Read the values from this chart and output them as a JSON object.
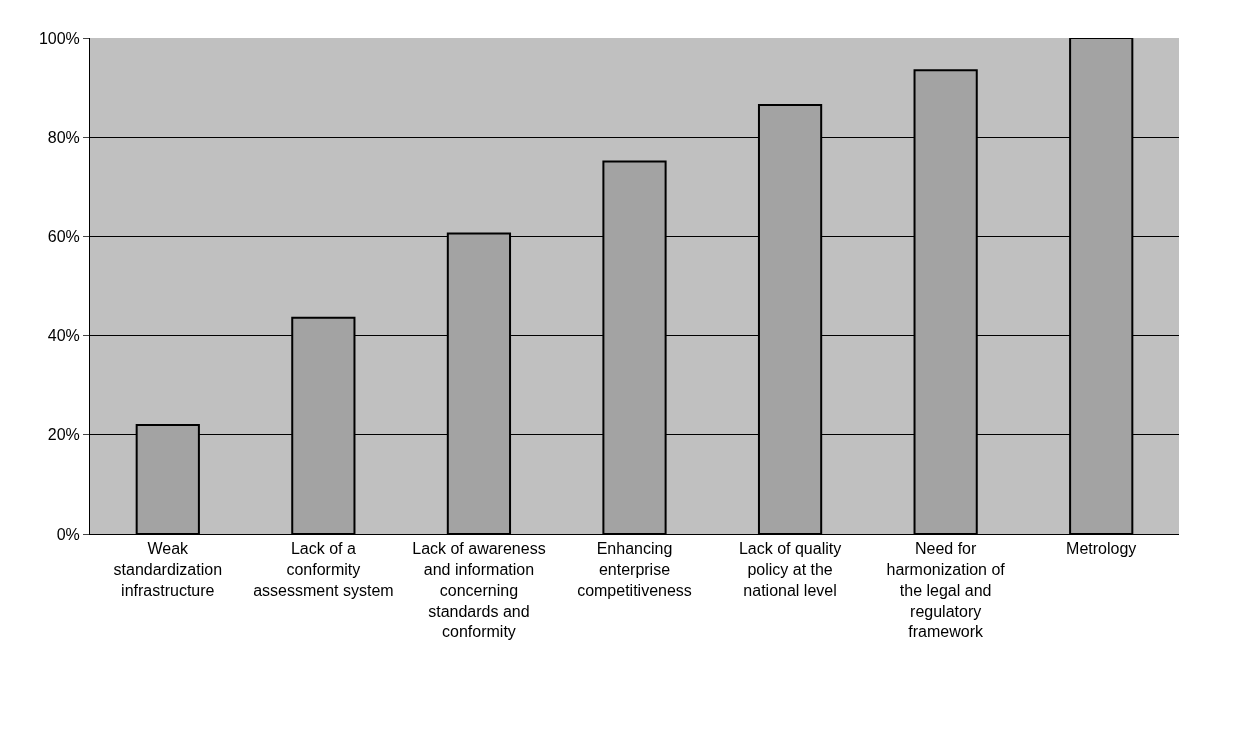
{
  "chart_data": {
    "type": "bar",
    "categories": [
      "Weak standardization infrastructure",
      "Lack of a conformity assessment system",
      "Lack of awareness and information concerning standards and conformity",
      "Enhancing enterprise competitiveness",
      "Lack of quality policy at the national level",
      "Need for harmonization of the legal and regulatory framework",
      "Metrology"
    ],
    "values": [
      22,
      43.6,
      60.6,
      75.1,
      86.5,
      93.5,
      100
    ],
    "color": "#a3a3a3",
    "ylim": [
      0,
      100
    ],
    "yticks": [
      {
        "value": 0,
        "label": "0%"
      },
      {
        "value": 20,
        "label": "20%"
      },
      {
        "value": 40,
        "label": "40%"
      },
      {
        "value": 60,
        "label": "60%"
      },
      {
        "value": 80,
        "label": "80%"
      },
      {
        "value": 100,
        "label": "100%"
      }
    ],
    "grid": "y"
  }
}
